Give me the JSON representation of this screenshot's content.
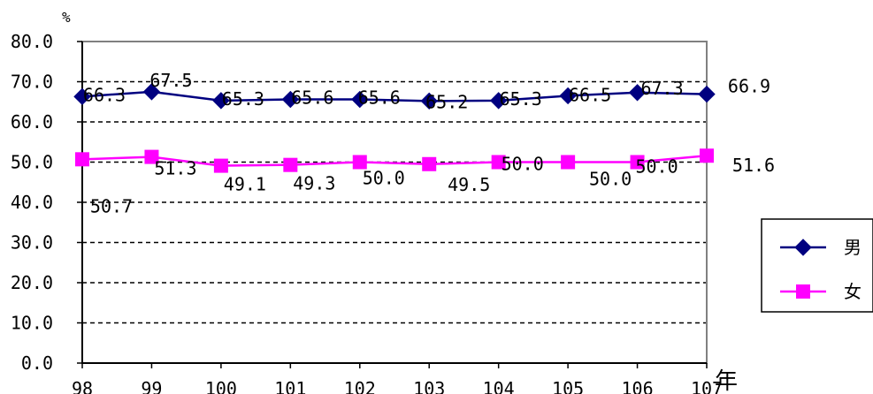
{
  "chart_data": {
    "type": "line",
    "ylabel": "%",
    "xlabel": "年",
    "categories": [
      "98",
      "99",
      "100",
      "101",
      "102",
      "103",
      "104",
      "105",
      "106",
      "107"
    ],
    "y_ticks": [
      "0.0",
      "10.0",
      "20.0",
      "30.0",
      "40.0",
      "50.0",
      "60.0",
      "70.0",
      "80.0"
    ],
    "ylim": [
      0,
      80
    ],
    "grid": "dashed horizontal",
    "legend_position": "right",
    "series": [
      {
        "name": "男",
        "color": "#000080",
        "marker": "diamond",
        "values": [
          66.3,
          67.5,
          65.3,
          65.6,
          65.6,
          65.2,
          65.3,
          66.5,
          67.3,
          66.9
        ],
        "labels": [
          "66.3",
          "67.5",
          "65.3",
          "65.6",
          "65.6",
          "65.2",
          "65.3",
          "66.5",
          "67.3",
          "66.9"
        ]
      },
      {
        "name": "女",
        "color": "#ff00ff",
        "marker": "square",
        "values": [
          50.7,
          51.3,
          49.1,
          49.3,
          50.0,
          49.5,
          50.0,
          50.0,
          50.0,
          51.6
        ],
        "labels": [
          "50.7",
          "51.3",
          "49.1",
          "49.3",
          "50.0",
          "49.5",
          "50.0",
          "50.0",
          "50.0",
          "51.6"
        ]
      }
    ]
  }
}
